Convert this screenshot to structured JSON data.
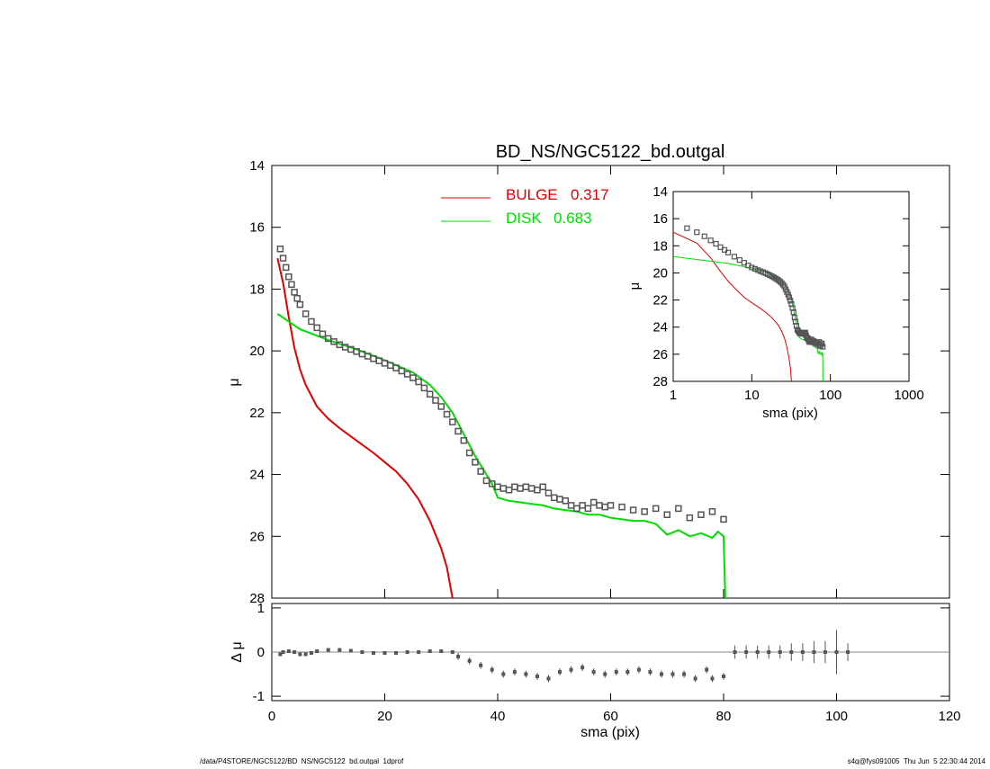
{
  "footer": {
    "left": "/data/P4STORE/NGC5122/BD_NS/NGC5122_bd.outgal_1dprof",
    "right": "s4g@fys091005  Thu Jun  5 22:30:44 2014"
  },
  "chart_data": [
    {
      "type": "scatter",
      "title": "BD_NS/NGC5122_bd.outgal",
      "ylabel": "μ",
      "xlim": [
        0,
        120
      ],
      "ylim": [
        28,
        14
      ],
      "yticks": [
        14,
        16,
        18,
        20,
        22,
        24,
        26,
        28
      ],
      "x": [
        1.5,
        2,
        2.5,
        3,
        3.5,
        4,
        4.5,
        5,
        6,
        7,
        8,
        9,
        10,
        11,
        12,
        13,
        14,
        15,
        16,
        17,
        18,
        19,
        20,
        21,
        22,
        23,
        24,
        25,
        26,
        27,
        28,
        29,
        30,
        31,
        32,
        33,
        34,
        35,
        36,
        37,
        38,
        39,
        40,
        41,
        42,
        43,
        44,
        45,
        46,
        47,
        48,
        49,
        50,
        51,
        52,
        53,
        54,
        55,
        56,
        57,
        58,
        59,
        60,
        62,
        64,
        66,
        68,
        70,
        72,
        74,
        76,
        78,
        80
      ],
      "series": [
        {
          "color": "#555555",
          "marker": "square",
          "values": [
            16.7,
            17.0,
            17.3,
            17.6,
            17.85,
            18.1,
            18.3,
            18.5,
            18.8,
            19.05,
            19.25,
            19.45,
            19.6,
            19.7,
            19.8,
            19.88,
            19.95,
            20.02,
            20.1,
            20.17,
            20.25,
            20.32,
            20.4,
            20.47,
            20.55,
            20.65,
            20.75,
            20.87,
            21.0,
            21.2,
            21.4,
            21.6,
            21.8,
            22.05,
            22.3,
            22.6,
            22.9,
            23.3,
            23.6,
            23.9,
            24.2,
            24.3,
            24.4,
            24.45,
            24.5,
            24.4,
            24.45,
            24.4,
            24.45,
            24.5,
            24.4,
            24.6,
            24.75,
            24.8,
            24.85,
            25.0,
            25.1,
            25.0,
            25.1,
            24.9,
            25.0,
            25.05,
            25.0,
            25.05,
            25.15,
            25.2,
            25.1,
            25.3,
            25.1,
            25.4,
            25.3,
            25.2,
            25.45
          ]
        }
      ],
      "curves": [
        {
          "name": "BULGE",
          "fraction": 0.317,
          "color": "#e00000",
          "x": [
            1,
            2,
            3,
            4,
            5,
            6,
            8,
            10,
            12,
            15,
            18,
            20,
            22,
            24,
            26,
            28,
            30,
            31,
            32
          ],
          "values": [
            17.0,
            17.8,
            18.9,
            19.9,
            20.6,
            21.1,
            21.8,
            22.2,
            22.5,
            22.9,
            23.3,
            23.6,
            23.9,
            24.3,
            24.8,
            25.5,
            26.4,
            27.0,
            28.0
          ]
        },
        {
          "name": "DISK",
          "fraction": 0.683,
          "color": "#00dd00",
          "x": [
            1,
            5,
            10,
            15,
            20,
            25,
            28,
            30,
            32,
            34,
            36,
            38,
            39,
            40,
            42,
            44,
            46,
            48,
            50,
            52,
            54,
            56,
            58,
            60,
            62,
            64,
            66,
            68,
            70,
            72,
            74,
            76,
            78,
            79,
            80,
            80.3
          ],
          "values": [
            18.8,
            19.3,
            19.65,
            19.95,
            20.3,
            20.7,
            21.1,
            21.5,
            22.0,
            22.7,
            23.4,
            24.0,
            24.3,
            24.75,
            24.85,
            24.9,
            24.95,
            25.0,
            25.1,
            25.15,
            25.2,
            25.3,
            25.3,
            25.4,
            25.45,
            25.5,
            25.5,
            25.6,
            25.95,
            25.8,
            26.0,
            25.9,
            26.05,
            25.85,
            26.0,
            28.0
          ]
        }
      ]
    },
    {
      "type": "line",
      "xlabel": "sma (pix)",
      "ylabel": "μ",
      "log_x": true,
      "xlim": [
        1,
        1000
      ],
      "ylim": [
        28,
        14
      ],
      "xticks": [
        1,
        10,
        100,
        1000
      ],
      "yticks": [
        14,
        16,
        18,
        20,
        22,
        24,
        26,
        28
      ]
    },
    {
      "type": "errorbar",
      "xlabel": "sma (pix)",
      "ylabel": "Δ μ",
      "xlim": [
        0,
        120
      ],
      "ylim": [
        -1.1,
        1.1
      ],
      "xticks": [
        0,
        20,
        40,
        60,
        80,
        100,
        120
      ],
      "yticks": [
        -1,
        0,
        1
      ],
      "x": [
        1.5,
        2,
        3,
        4,
        5,
        6,
        7,
        8,
        10,
        12,
        14,
        16,
        18,
        20,
        22,
        24,
        26,
        28,
        30,
        32,
        33,
        35,
        37,
        39,
        41,
        43,
        45,
        47,
        49,
        51,
        53,
        55,
        57,
        59,
        61,
        63,
        65,
        67,
        69,
        71,
        73,
        75,
        77,
        78,
        80,
        82,
        84,
        86,
        88,
        90,
        92,
        94,
        96,
        98,
        100,
        102
      ],
      "values": [
        -0.05,
        0,
        0.02,
        0,
        -0.05,
        -0.05,
        -0.02,
        0.02,
        0.05,
        0.05,
        0.03,
        0,
        -0.02,
        -0.02,
        -0.02,
        0,
        0,
        0.02,
        0.02,
        0,
        -0.1,
        -0.2,
        -0.3,
        -0.4,
        -0.5,
        -0.45,
        -0.5,
        -0.55,
        -0.6,
        -0.45,
        -0.4,
        -0.35,
        -0.45,
        -0.5,
        -0.45,
        -0.45,
        -0.4,
        -0.45,
        -0.5,
        -0.5,
        -0.5,
        -0.6,
        -0.4,
        -0.6,
        -0.55,
        0,
        0,
        0,
        0,
        0,
        0,
        0,
        0,
        0,
        0,
        0
      ],
      "errors": [
        0.03,
        0.03,
        0.03,
        0.03,
        0.03,
        0.03,
        0.03,
        0.03,
        0.03,
        0.03,
        0.03,
        0.03,
        0.03,
        0.03,
        0.03,
        0.03,
        0.03,
        0.03,
        0.03,
        0.03,
        0.08,
        0.08,
        0.08,
        0.08,
        0.08,
        0.08,
        0.08,
        0.08,
        0.08,
        0.08,
        0.08,
        0.08,
        0.08,
        0.08,
        0.08,
        0.08,
        0.08,
        0.08,
        0.08,
        0.08,
        0.08,
        0.08,
        0.08,
        0.08,
        0.08,
        0.15,
        0.15,
        0.15,
        0.15,
        0.15,
        0.2,
        0.2,
        0.25,
        0.25,
        0.5,
        0.2
      ],
      "color": "#555555"
    }
  ]
}
